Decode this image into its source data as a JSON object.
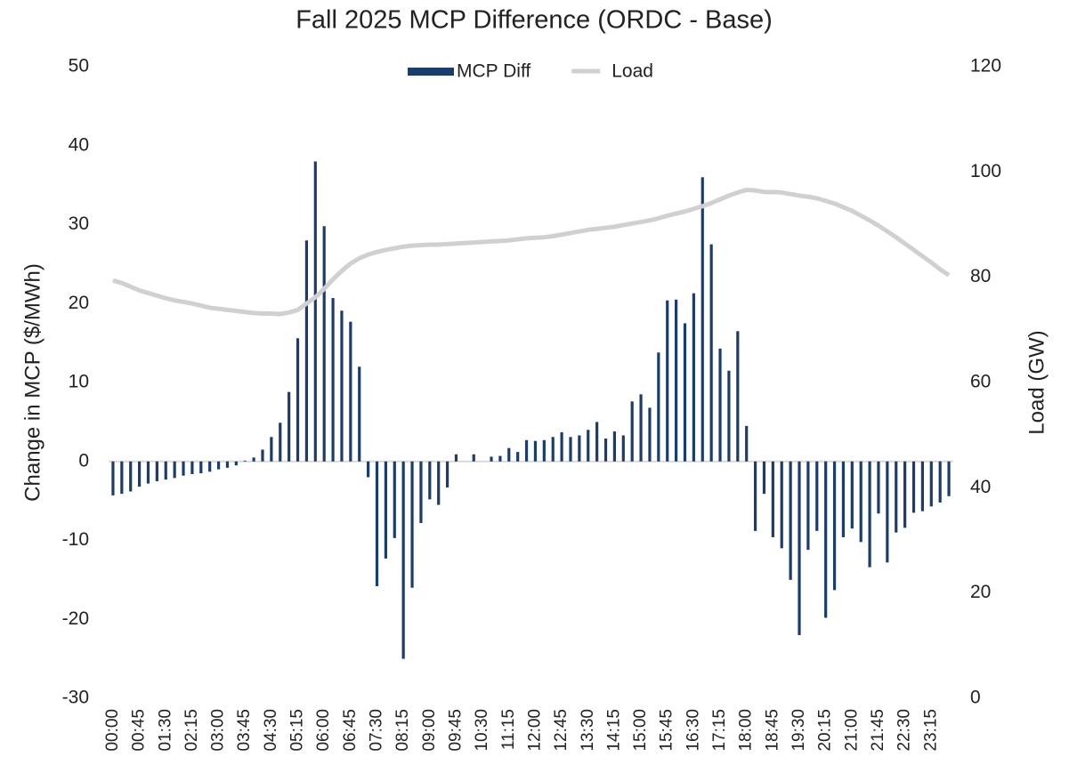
{
  "chart_data": {
    "type": "bar-line",
    "title": "Fall 2025 MCP Difference (ORDC - Base)",
    "y_label": "Change in MCP ($/MWh)",
    "y2_label": "Load (GW)",
    "categories": [
      "00:00",
      null,
      null,
      "00:45",
      null,
      null,
      "01:30",
      null,
      null,
      "02:15",
      null,
      null,
      "03:00",
      null,
      null,
      "03:45",
      null,
      null,
      "04:30",
      null,
      null,
      "05:15",
      null,
      null,
      "06:00",
      null,
      null,
      "06:45",
      null,
      null,
      "07:30",
      null,
      null,
      "08:15",
      null,
      null,
      "09:00",
      null,
      null,
      "09:45",
      null,
      null,
      "10:30",
      null,
      null,
      "11:15",
      null,
      null,
      "12:00",
      null,
      null,
      "12:45",
      null,
      null,
      "13:30",
      null,
      null,
      "14:15",
      null,
      null,
      "15:00",
      null,
      null,
      "15:45",
      null,
      null,
      "16:30",
      null,
      null,
      "17:15",
      null,
      null,
      "18:00",
      null,
      null,
      "18:45",
      null,
      null,
      "19:30",
      null,
      null,
      "20:15",
      null,
      null,
      "21:00",
      null,
      null,
      "21:45",
      null,
      null,
      "22:30",
      null,
      null,
      "23:15",
      null,
      null
    ],
    "series": [
      {
        "name": "MCP Diff",
        "type": "bar",
        "color": "#1b3d6e",
        "values": [
          -4.3,
          -4.1,
          -3.8,
          -3.2,
          -2.8,
          -2.5,
          -2.3,
          -2.1,
          -1.8,
          -1.6,
          -1.5,
          -1.3,
          -1.0,
          -0.8,
          -0.5,
          0.1,
          0.5,
          1.5,
          3.1,
          4.9,
          8.8,
          15.6,
          28,
          38,
          29.8,
          20.7,
          19.1,
          17.7,
          12,
          -2,
          -15.8,
          -12.3,
          -9.7,
          -25,
          -16,
          -7.8,
          -4.8,
          -5.5,
          -3.3,
          0.9,
          0,
          0.9,
          0,
          0.6,
          0.7,
          1.7,
          1.2,
          2.7,
          2.6,
          2.7,
          3.1,
          3.7,
          3.1,
          3.3,
          4.0,
          5.0,
          2.9,
          3.8,
          3.3,
          7.6,
          8.5,
          6.8,
          13.8,
          20.4,
          20.5,
          17.5,
          21.3,
          36,
          27.5,
          14.3,
          11.5,
          16.5,
          4.5,
          -8.8,
          -4.1,
          -9.6,
          -11,
          -15,
          -22,
          -11.2,
          -8.8,
          -19.8,
          -16.3,
          -9.6,
          -8.5,
          -10.2,
          -13.4,
          -6.6,
          -12.8,
          -9,
          -8.4,
          -6.5,
          -6.3,
          -5.7,
          -5.2,
          -4.4
        ]
      },
      {
        "name": "Load",
        "type": "line",
        "axis": "y2",
        "color": "#d0d0d0",
        "values": [
          79.4,
          78.9,
          78.2,
          77.5,
          77,
          76.5,
          76,
          75.6,
          75.3,
          75,
          74.6,
          74.2,
          74,
          73.8,
          73.6,
          73.4,
          73.2,
          73.1,
          73.1,
          73,
          73.3,
          73.8,
          75.0,
          76.2,
          77.8,
          79.6,
          81.2,
          82.6,
          83.6,
          84.3,
          84.8,
          85.2,
          85.5,
          85.8,
          86,
          86.1,
          86.2,
          86.2,
          86.3,
          86.4,
          86.5,
          86.6,
          86.7,
          86.8,
          86.9,
          87.0,
          87.2,
          87.4,
          87.5,
          87.6,
          87.8,
          88.1,
          88.4,
          88.7,
          89.0,
          89.2,
          89.4,
          89.6,
          89.9,
          90.2,
          90.5,
          90.8,
          91.2,
          91.7,
          92.1,
          92.5,
          93.0,
          93.5,
          94.1,
          94.8,
          95.5,
          96.1,
          96.6,
          96.5,
          96.2,
          96.2,
          96.1,
          95.8,
          95.5,
          95.3,
          95.0,
          94.5,
          94.0,
          93.3,
          92.6,
          91.7,
          90.8,
          89.8,
          88.7,
          87.6,
          86.4,
          85.2,
          84.0,
          82.8,
          81.5,
          80.4
        ]
      }
    ],
    "ylim": [
      -30,
      50
    ],
    "yticks": [
      -30,
      -20,
      -10,
      0,
      10,
      20,
      30,
      40,
      50
    ],
    "y2lim": [
      0,
      120
    ],
    "y2ticks": [
      0,
      20,
      40,
      60,
      80,
      100,
      120
    ],
    "grid": false,
    "legend": "top"
  }
}
